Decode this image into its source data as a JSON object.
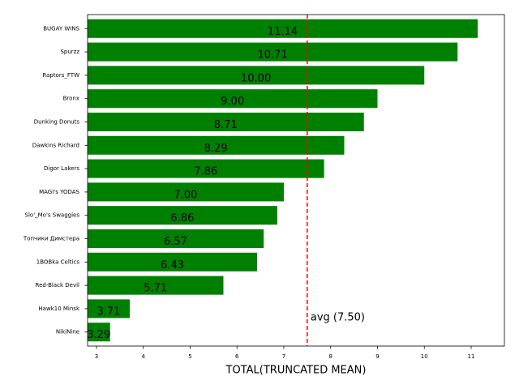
{
  "chart_data": {
    "type": "barh",
    "xlabel": "TOTAL(TRUNCATED MEAN)",
    "categories": [
      "BUGAY WINS",
      "Spurzz",
      "Raptors_FTW",
      "Bronx",
      "Dunking Donuts",
      "Dawkins Richard",
      "Digor Lakers",
      "MAGI's YODAS",
      "Slo'_Mo's Swaggies",
      "Топчики Димстера",
      "1BOBka Celtics",
      "Red-Black Devil",
      "Hawk10 Minsk",
      "NikiNine"
    ],
    "values": [
      11.14,
      10.71,
      10.0,
      9.0,
      8.71,
      8.29,
      7.86,
      7.0,
      6.86,
      6.57,
      6.43,
      5.71,
      3.71,
      3.29
    ],
    "value_labels": [
      "11.14",
      "10.71",
      "10.00",
      "9.00",
      "8.71",
      "8.29",
      "7.86",
      "7.00",
      "6.86",
      "6.57",
      "6.43",
      "5.71",
      "3.71",
      "3.29"
    ],
    "color": "#008000",
    "xlim": [
      2.81,
      11.71
    ],
    "xticks": [
      3,
      4,
      5,
      6,
      7,
      8,
      9,
      10,
      11
    ],
    "avg_line": 7.5,
    "avg_color": "#ff0000",
    "avg_label": "avg (7.50)"
  }
}
